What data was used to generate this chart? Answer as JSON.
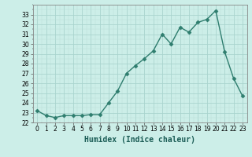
{
  "x": [
    0,
    1,
    2,
    3,
    4,
    5,
    6,
    7,
    8,
    9,
    10,
    11,
    12,
    13,
    14,
    15,
    16,
    17,
    18,
    19,
    20,
    21,
    22,
    23
  ],
  "y": [
    23.2,
    22.7,
    22.5,
    22.7,
    22.7,
    22.7,
    22.8,
    22.8,
    24.0,
    25.2,
    27.0,
    27.8,
    28.5,
    29.3,
    31.0,
    30.0,
    31.7,
    31.2,
    32.2,
    32.5,
    33.4,
    29.2,
    26.5,
    24.7
  ],
  "line_color": "#2e7d6e",
  "marker": "D",
  "marker_size": 2.5,
  "bg_color": "#cceee8",
  "grid_major_color": "#aad4ce",
  "grid_minor_color": "#bbddd8",
  "xlabel": "Humidex (Indice chaleur)",
  "ylim": [
    22,
    34
  ],
  "xlim": [
    -0.5,
    23.5
  ],
  "yticks": [
    22,
    23,
    24,
    25,
    26,
    27,
    28,
    29,
    30,
    31,
    32,
    33
  ],
  "xticks": [
    0,
    1,
    2,
    3,
    4,
    5,
    6,
    7,
    8,
    9,
    10,
    11,
    12,
    13,
    14,
    15,
    16,
    17,
    18,
    19,
    20,
    21,
    22,
    23
  ],
  "tick_fontsize": 5.5,
  "xlabel_fontsize": 7,
  "line_width": 1.0
}
